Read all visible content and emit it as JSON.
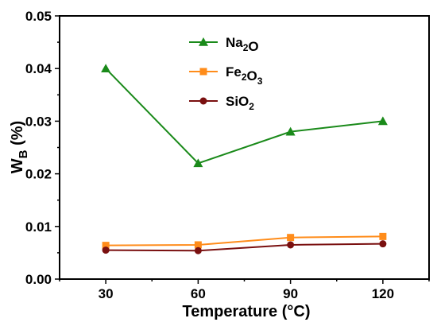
{
  "chart_data": {
    "type": "line",
    "title": "",
    "xlabel": "Temperature (°C)",
    "ylabel": "W_B (%)",
    "x": [
      30,
      60,
      90,
      120
    ],
    "xticks": [
      "30",
      "60",
      "90",
      "120"
    ],
    "xlim": [
      15,
      135
    ],
    "ylim": [
      0.0,
      0.05
    ],
    "yticks": [
      "0.00",
      "0.01",
      "0.02",
      "0.03",
      "0.04",
      "0.05"
    ],
    "grid": false,
    "legend_position": "top-center",
    "series": [
      {
        "name": "Na2O",
        "label_html": "Na<tspan baseline-shift='sub' font-size='12'>2</tspan>O",
        "color": "#1a8a1a",
        "marker": "triangle",
        "values": [
          0.04,
          0.022,
          0.028,
          0.03
        ]
      },
      {
        "name": "Fe2O3",
        "color": "#ff8c1a",
        "marker": "square",
        "values": [
          0.0064,
          0.0065,
          0.0079,
          0.0081
        ]
      },
      {
        "name": "SiO2",
        "color": "#7a1010",
        "marker": "circle",
        "values": [
          0.0055,
          0.0054,
          0.0065,
          0.0067
        ]
      }
    ]
  }
}
